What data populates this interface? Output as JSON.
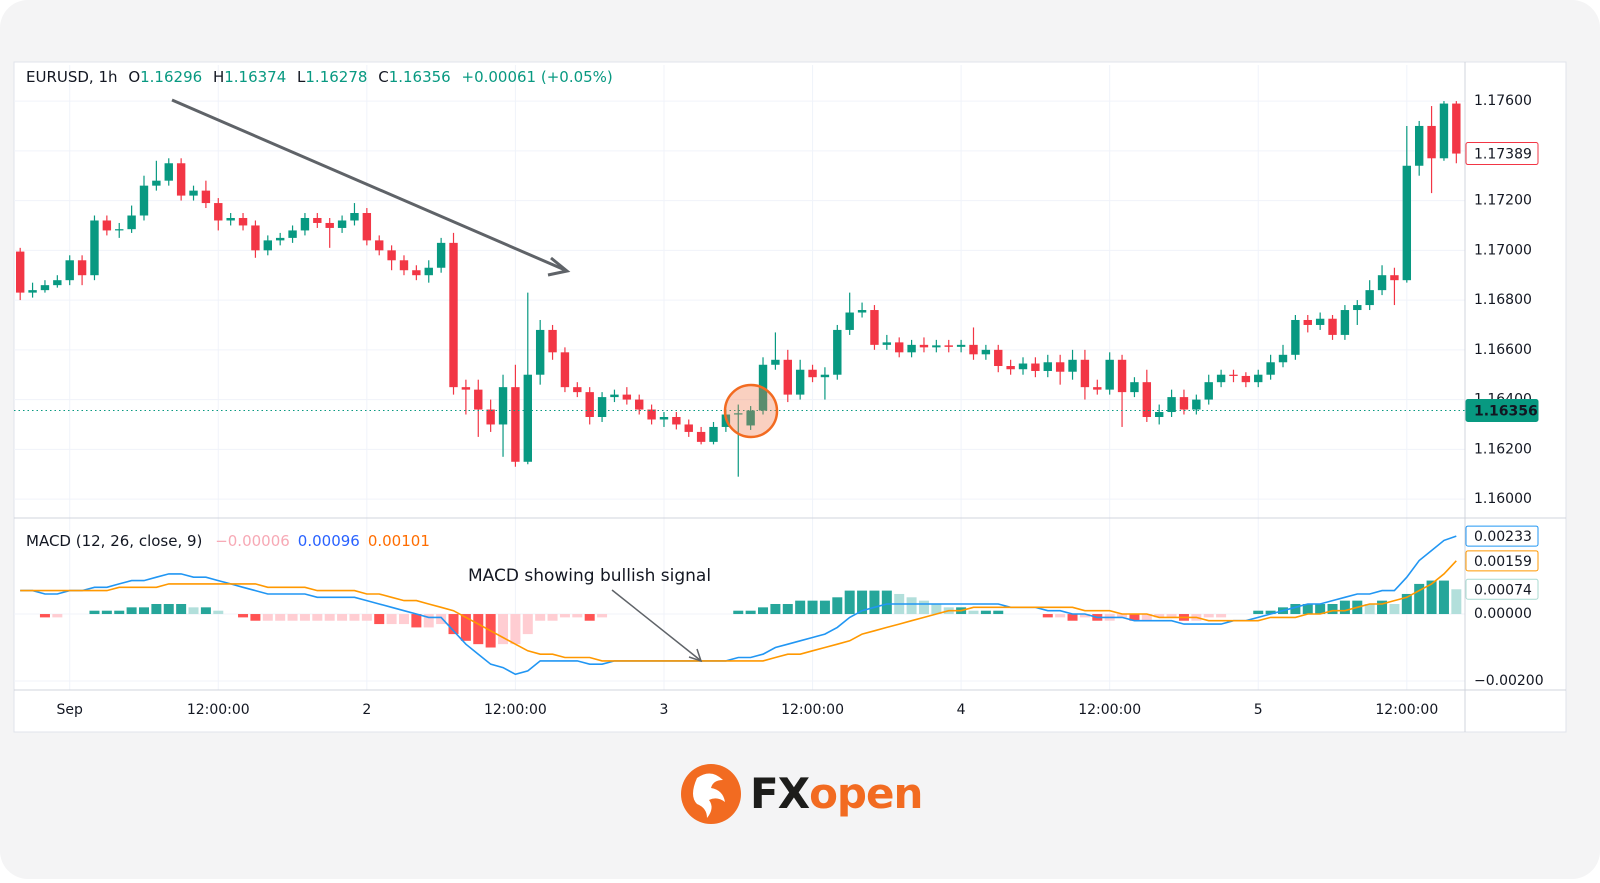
{
  "chart_data": [
    {
      "type": "candlestick",
      "legend": {
        "symbol": "EURUSD, 1h",
        "fields": [
          {
            "key": "O",
            "value": "1.16296"
          },
          {
            "key": "H",
            "value": "1.16374"
          },
          {
            "key": "L",
            "value": "1.16278"
          },
          {
            "key": "C",
            "value": "1.16356"
          }
        ],
        "change": "+0.00061 (+0.05%)"
      },
      "up_color": "#089981",
      "down_color": "#f23645",
      "xlim": [
        -0.5,
        116.7
      ],
      "ylim": [
        1.15924,
        1.17745
      ],
      "yticks": [
        {
          "value": 1.16,
          "label": "1.16000"
        },
        {
          "value": 1.162,
          "label": "1.16200"
        },
        {
          "value": 1.164,
          "label": "1.16400"
        },
        {
          "value": 1.166,
          "label": "1.16600"
        },
        {
          "value": 1.168,
          "label": "1.16800"
        },
        {
          "value": 1.17,
          "label": "1.17000"
        },
        {
          "value": 1.172,
          "label": "1.17200"
        },
        {
          "value": 1.174,
          "label": "1.17400"
        },
        {
          "value": 1.176,
          "label": "1.17600"
        }
      ],
      "grid": true,
      "price_tags": [
        {
          "value": 1.17389,
          "label": "1.17389",
          "color": "#f23645",
          "style": "outline"
        },
        {
          "value": 1.16356,
          "label": "1.16356",
          "color": "#089981",
          "style": "filled",
          "line": true
        }
      ],
      "open": [
        1.16995,
        1.1683,
        1.1684,
        1.1686,
        1.1688,
        1.1696,
        1.169,
        1.1712,
        1.1708,
        1.17085,
        1.1714,
        1.1726,
        1.1728,
        1.1735,
        1.1722,
        1.1724,
        1.1719,
        1.1712,
        1.1713,
        1.171,
        1.17,
        1.1704,
        1.1705,
        1.1708,
        1.1713,
        1.1711,
        1.1709,
        1.1712,
        1.1715,
        1.1704,
        1.17,
        1.1696,
        1.1692,
        1.169,
        1.1693,
        1.1703,
        1.1645,
        1.1644,
        1.1636,
        1.163,
        1.1645,
        1.1615,
        1.165,
        1.1668,
        1.1659,
        1.1645,
        1.1643,
        1.1633,
        1.1641,
        1.1642,
        1.164,
        1.1636,
        1.1632,
        1.1633,
        1.163,
        1.1627,
        1.1623,
        1.1629,
        1.1634,
        1.16296,
        1.16356,
        1.1654,
        1.1656,
        1.1642,
        1.1652,
        1.1649,
        1.165,
        1.1668,
        1.1675,
        1.1676,
        1.1662,
        1.1663,
        1.1659,
        1.1662,
        1.1661,
        1.16618,
        1.16612,
        1.1662,
        1.16582,
        1.166,
        1.16535,
        1.16522,
        1.16545,
        1.16515,
        1.1655,
        1.16512,
        1.1656,
        1.1645,
        1.1644,
        1.1656,
        1.1643,
        1.1647,
        1.1633,
        1.1635,
        1.1641,
        1.1636,
        1.164,
        1.1647,
        1.165,
        1.16495,
        1.1647,
        1.165,
        1.1655,
        1.1658,
        1.1672,
        1.167,
        1.16725,
        1.1666,
        1.1676,
        1.1678,
        1.1684,
        1.169,
        1.1688,
        1.1734,
        1.175,
        1.1737,
        1.1759
      ],
      "high": [
        1.1701,
        1.1687,
        1.1688,
        1.169,
        1.1698,
        1.1698,
        1.1714,
        1.1714,
        1.1711,
        1.1718,
        1.173,
        1.1736,
        1.1737,
        1.1737,
        1.1726,
        1.1728,
        1.1721,
        1.1715,
        1.1715,
        1.1712,
        1.1706,
        1.1707,
        1.171,
        1.1715,
        1.1715,
        1.1713,
        1.1714,
        1.1719,
        1.1717,
        1.1706,
        1.1702,
        1.1698,
        1.1694,
        1.1696,
        1.1705,
        1.1707,
        1.1648,
        1.1648,
        1.164,
        1.165,
        1.1654,
        1.1683,
        1.1672,
        1.167,
        1.1661,
        1.1647,
        1.1645,
        1.1643,
        1.1644,
        1.1645,
        1.1642,
        1.1638,
        1.1635,
        1.1635,
        1.1632,
        1.1629,
        1.1631,
        1.1636,
        1.1638,
        1.16374,
        1.1657,
        1.1667,
        1.166,
        1.1656,
        1.1654,
        1.1653,
        1.167,
        1.1683,
        1.1679,
        1.1678,
        1.1666,
        1.1665,
        1.1664,
        1.1665,
        1.1664,
        1.1664,
        1.1664,
        1.1669,
        1.1662,
        1.1662,
        1.1656,
        1.1657,
        1.1657,
        1.1658,
        1.1658,
        1.166,
        1.166,
        1.1648,
        1.1659,
        1.1658,
        1.1649,
        1.1652,
        1.1638,
        1.1644,
        1.1644,
        1.1642,
        1.165,
        1.1652,
        1.1652,
        1.1651,
        1.1652,
        1.1658,
        1.1662,
        1.1674,
        1.1674,
        1.1675,
        1.1674,
        1.1678,
        1.168,
        1.1688,
        1.1694,
        1.1693,
        1.175,
        1.1752,
        1.1758,
        1.176,
        1.176
      ],
      "low": [
        1.168,
        1.1681,
        1.1683,
        1.1685,
        1.1686,
        1.1686,
        1.1688,
        1.1706,
        1.1705,
        1.1707,
        1.1712,
        1.1724,
        1.1726,
        1.172,
        1.172,
        1.1717,
        1.1708,
        1.171,
        1.1708,
        1.1697,
        1.1698,
        1.1702,
        1.1703,
        1.1706,
        1.1709,
        1.1701,
        1.1707,
        1.171,
        1.1702,
        1.1698,
        1.1692,
        1.169,
        1.1688,
        1.1687,
        1.1691,
        1.1642,
        1.1634,
        1.1625,
        1.1627,
        1.1617,
        1.1613,
        1.1614,
        1.1646,
        1.1656,
        1.1643,
        1.1641,
        1.163,
        1.1631,
        1.1639,
        1.1638,
        1.1634,
        1.163,
        1.1629,
        1.1628,
        1.1625,
        1.1622,
        1.1622,
        1.1627,
        1.1609,
        1.16278,
        1.1634,
        1.1652,
        1.1639,
        1.164,
        1.1647,
        1.164,
        1.1648,
        1.1666,
        1.1673,
        1.166,
        1.166,
        1.1657,
        1.1657,
        1.1659,
        1.1659,
        1.1659,
        1.1659,
        1.1656,
        1.1656,
        1.1651,
        1.165,
        1.165,
        1.1649,
        1.1649,
        1.1646,
        1.1648,
        1.164,
        1.1642,
        1.1642,
        1.1629,
        1.1641,
        1.1631,
        1.163,
        1.1633,
        1.1634,
        1.1634,
        1.1638,
        1.1645,
        1.1647,
        1.1645,
        1.1645,
        1.1648,
        1.1653,
        1.1656,
        1.1667,
        1.1668,
        1.1664,
        1.1664,
        1.167,
        1.1676,
        1.1682,
        1.1678,
        1.1687,
        1.173,
        1.1723,
        1.1736,
        1.1735
      ],
      "close": [
        1.1683,
        1.1684,
        1.1686,
        1.1688,
        1.1696,
        1.169,
        1.1712,
        1.1708,
        1.17085,
        1.1714,
        1.1726,
        1.1728,
        1.1735,
        1.1722,
        1.1724,
        1.1719,
        1.1712,
        1.1713,
        1.171,
        1.17,
        1.1704,
        1.1705,
        1.1708,
        1.1713,
        1.1711,
        1.1709,
        1.1712,
        1.1715,
        1.1704,
        1.17,
        1.1696,
        1.1692,
        1.169,
        1.1693,
        1.1703,
        1.1645,
        1.1644,
        1.1636,
        1.163,
        1.1645,
        1.1615,
        1.165,
        1.1668,
        1.1659,
        1.1645,
        1.1643,
        1.1633,
        1.1641,
        1.1642,
        1.164,
        1.1636,
        1.1632,
        1.1633,
        1.163,
        1.1627,
        1.1623,
        1.1629,
        1.1634,
        1.16345,
        1.16356,
        1.1654,
        1.1656,
        1.1642,
        1.1652,
        1.1649,
        1.165,
        1.1668,
        1.1675,
        1.1676,
        1.1662,
        1.1663,
        1.1659,
        1.1662,
        1.1661,
        1.16618,
        1.16612,
        1.1662,
        1.16582,
        1.166,
        1.16535,
        1.16522,
        1.16545,
        1.16515,
        1.1655,
        1.16512,
        1.1656,
        1.1645,
        1.1644,
        1.1656,
        1.1643,
        1.1647,
        1.1633,
        1.1635,
        1.1641,
        1.1636,
        1.164,
        1.1647,
        1.165,
        1.16495,
        1.1647,
        1.165,
        1.1655,
        1.1658,
        1.1672,
        1.167,
        1.16725,
        1.1666,
        1.1676,
        1.1678,
        1.1684,
        1.169,
        1.1688,
        1.1734,
        1.175,
        1.1737,
        1.1759,
        1.17389
      ]
    },
    {
      "type": "macd",
      "title": "MACD (12, 26, close, 9)",
      "legend_values": [
        {
          "text": "−0.00006",
          "color": "#f7a9b5"
        },
        {
          "text": "0.00096",
          "color": "#2962ff"
        },
        {
          "text": "0.00101",
          "color": "#ff6d00"
        }
      ],
      "annotation": "MACD showing bullish signal",
      "xlim": [
        -0.5,
        116.7
      ],
      "ylim": [
        -0.00227,
        0.00281
      ],
      "yticks": [
        {
          "value": 0,
          "label": "0.00000"
        },
        {
          "value": -0.002,
          "label": "−0.00200"
        }
      ],
      "xticks": [
        {
          "value": 4,
          "label": "Sep"
        },
        {
          "value": 16,
          "label": "12:00:00"
        },
        {
          "value": 28,
          "label": "2"
        },
        {
          "value": 40,
          "label": "12:00:00"
        },
        {
          "value": 52,
          "label": "3"
        },
        {
          "value": 64,
          "label": "12:00:00"
        },
        {
          "value": 76,
          "label": "4"
        },
        {
          "value": 88,
          "label": "12:00:00"
        },
        {
          "value": 100,
          "label": "5"
        },
        {
          "value": 112,
          "label": "12:00:00"
        }
      ],
      "grid": true,
      "histogram_colors": {
        "up_rising": "#26a69a",
        "up_falling": "#b2dfdb",
        "down_falling": "#ff5252",
        "down_rising": "#ffcdd2"
      },
      "tags": [
        {
          "value": 0.00233,
          "label": "0.00233",
          "color": "#2196f3"
        },
        {
          "value": 0.00159,
          "label": "0.00159",
          "color": "#ff9800"
        },
        {
          "value": 0.00074,
          "label": "0.00074",
          "color": "#a8dbd2"
        }
      ],
      "series": [
        {
          "name": "MACD",
          "color": "#2196f3",
          "values": [
            0.0007,
            0.0007,
            0.0006,
            0.0006,
            0.0007,
            0.0007,
            0.0008,
            0.0008,
            0.0009,
            0.001,
            0.001,
            0.0011,
            0.0012,
            0.0012,
            0.0011,
            0.0011,
            0.001,
            0.0009,
            0.0008,
            0.0007,
            0.0006,
            0.0006,
            0.0006,
            0.0006,
            0.0005,
            0.0005,
            0.0005,
            0.0005,
            0.0004,
            0.0003,
            0.0002,
            0.0001,
            0,
            -0.0001,
            -0.0001,
            -0.0005,
            -0.0009,
            -0.0012,
            -0.0015,
            -0.0016,
            -0.0018,
            -0.0017,
            -0.0014,
            -0.0014,
            -0.0014,
            -0.0014,
            -0.0015,
            -0.0015,
            -0.0014,
            -0.0014,
            -0.0014,
            -0.0014,
            -0.0014,
            -0.0014,
            -0.0014,
            -0.0014,
            -0.0014,
            -0.0014,
            -0.0013,
            -0.0013,
            -0.0012,
            -0.001,
            -0.0009,
            -0.0008,
            -0.0007,
            -0.0006,
            -0.0004,
            -0.0001,
            0.0001,
            0.0002,
            0.0003,
            0.0003,
            0.0003,
            0.0003,
            0.0003,
            0.0003,
            0.0003,
            0.0003,
            0.0003,
            0.0003,
            0.0002,
            0.0002,
            0.0002,
            0.0001,
            0.0001,
            0,
            0,
            -0.0001,
            -0.0001,
            -0.0001,
            -0.0002,
            -0.0002,
            -0.0002,
            -0.0002,
            -0.0003,
            -0.0003,
            -0.0003,
            -0.0003,
            -0.0002,
            -0.0002,
            -0.0001,
            0,
            0.0001,
            0.0002,
            0.0003,
            0.0003,
            0.0004,
            0.0005,
            0.0006,
            0.0006,
            0.0007,
            0.0007,
            0.0011,
            0.0016,
            0.0019,
            0.0022,
            0.00233
          ]
        },
        {
          "name": "Signal",
          "color": "#ff9800",
          "values": [
            0.0007,
            0.0007,
            0.0007,
            0.0007,
            0.0007,
            0.0007,
            0.0007,
            0.0007,
            0.0008,
            0.0008,
            0.0008,
            0.0008,
            0.0009,
            0.0009,
            0.0009,
            0.0009,
            0.0009,
            0.0009,
            0.0009,
            0.0009,
            0.0008,
            0.0008,
            0.0008,
            0.0008,
            0.0007,
            0.0007,
            0.0007,
            0.0007,
            0.0006,
            0.0006,
            0.0005,
            0.0004,
            0.0004,
            0.0003,
            0.0002,
            0.0001,
            -0.0001,
            -0.0003,
            -0.0005,
            -0.0007,
            -0.0009,
            -0.0011,
            -0.0012,
            -0.0012,
            -0.0013,
            -0.0013,
            -0.0013,
            -0.0014,
            -0.0014,
            -0.0014,
            -0.0014,
            -0.0014,
            -0.0014,
            -0.0014,
            -0.0014,
            -0.0014,
            -0.0014,
            -0.0014,
            -0.0014,
            -0.0014,
            -0.0014,
            -0.0013,
            -0.0012,
            -0.0012,
            -0.0011,
            -0.001,
            -0.0009,
            -0.0008,
            -0.0006,
            -0.0005,
            -0.0004,
            -0.0003,
            -0.0002,
            -0.0001,
            0,
            0.0001,
            0.0001,
            0.0002,
            0.0002,
            0.0002,
            0.0002,
            0.0002,
            0.0002,
            0.0002,
            0.0002,
            0.0002,
            0.0001,
            0.0001,
            0.0001,
            0,
            0,
            0,
            -0.0001,
            -0.0001,
            -0.0001,
            -0.0001,
            -0.0002,
            -0.0002,
            -0.0002,
            -0.0002,
            -0.0002,
            -0.0001,
            -0.0001,
            -0.0001,
            0,
            0,
            0.0001,
            0.0001,
            0.0002,
            0.0003,
            0.0003,
            0.0004,
            0.0005,
            0.0007,
            0.0009,
            0.0012,
            0.00159
          ]
        },
        {
          "name": "Histogram",
          "values": [
            0,
            0,
            -0.0001,
            -0.0001,
            0,
            0,
            0.0001,
            0.0001,
            0.0001,
            0.0002,
            0.0002,
            0.0003,
            0.0003,
            0.0003,
            0.0002,
            0.0002,
            0.0001,
            0,
            -0.0001,
            -0.0002,
            -0.0002,
            -0.0002,
            -0.0002,
            -0.0002,
            -0.0002,
            -0.0002,
            -0.0002,
            -0.0002,
            -0.0002,
            -0.0003,
            -0.0003,
            -0.0003,
            -0.0004,
            -0.0004,
            -0.0003,
            -0.0006,
            -0.0008,
            -0.0009,
            -0.001,
            -0.0009,
            -0.0009,
            -0.0006,
            -0.0002,
            -0.0002,
            -0.0001,
            -0.0001,
            -0.0002,
            -0.0001,
            0,
            0,
            0,
            0,
            0,
            0,
            0,
            0,
            0,
            0,
            0.0001,
            0.0001,
            0.0002,
            0.0003,
            0.0003,
            0.0004,
            0.0004,
            0.0004,
            0.0005,
            0.0007,
            0.0007,
            0.0007,
            0.0007,
            0.0006,
            0.0005,
            0.0004,
            0.0003,
            0.0002,
            0.0002,
            0.0001,
            0.0001,
            0.0001,
            0,
            0,
            0,
            -0.0001,
            -0.0001,
            -0.0002,
            -0.0001,
            -0.0002,
            -0.0002,
            -0.0001,
            -0.0002,
            -0.0002,
            -0.0001,
            -0.0001,
            -0.0002,
            -0.0002,
            -0.0001,
            -0.0001,
            0,
            0,
            0.0001,
            0.0001,
            0.0002,
            0.0003,
            0.0003,
            0.0003,
            0.0003,
            0.0004,
            0.0004,
            0.0003,
            0.0004,
            0.0003,
            0.0006,
            0.0009,
            0.001,
            0.001,
            0.00074
          ]
        }
      ]
    }
  ],
  "logo": {
    "dark": "FX",
    "accent": "open"
  }
}
